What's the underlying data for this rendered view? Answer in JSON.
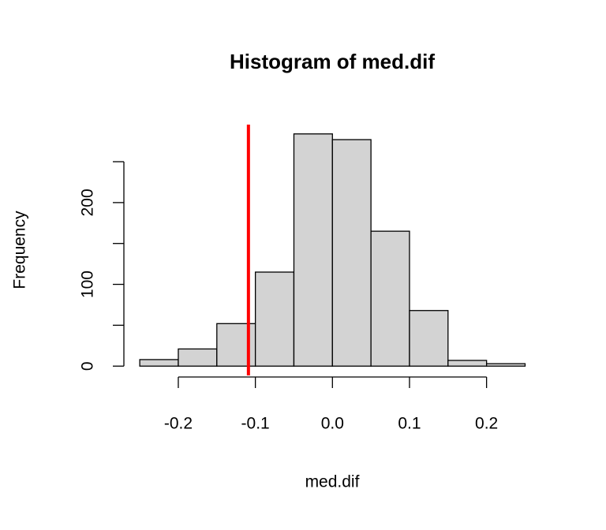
{
  "chart_data": {
    "type": "histogram",
    "title": "Histogram of med.dif",
    "x_label": "med.dif",
    "y_label": "Frequency",
    "bins": [
      -0.25,
      -0.2,
      -0.15,
      -0.1,
      -0.05,
      0,
      0.05,
      0.1,
      0.15,
      0.2,
      0.25
    ],
    "values": [
      8,
      21,
      52,
      115,
      284,
      277,
      165,
      68,
      7,
      3
    ],
    "color": "#d3d3d3",
    "xlim": [
      -0.27,
      0.27
    ],
    "ylim": [
      -11.36,
      295.36
    ],
    "xticks": [
      -0.2,
      -0.1,
      {
        "value": 0,
        "label": "0.0"
      },
      0.1,
      0.2
    ],
    "yticks": [
      0,
      {
        "value": 50,
        "label": null
      },
      100,
      {
        "value": 150,
        "label": null
      },
      200,
      {
        "value": 250,
        "label": null
      }
    ],
    "vline": {
      "value": -0.109,
      "color": "#ff0000"
    }
  }
}
